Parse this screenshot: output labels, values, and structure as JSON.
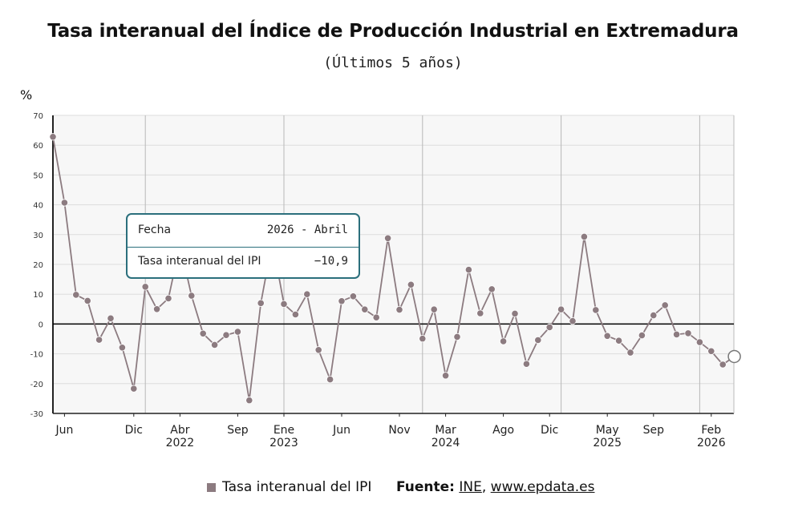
{
  "title": "Tasa interanual del Índice de Producción Industrial en Extremadura",
  "subtitle": "(Últimos 5 años)",
  "unit_label": "%",
  "legend": {
    "label": "Tasa interanual del IPI"
  },
  "source": {
    "prefix": "Fuente:",
    "ine": "INE",
    "sep": ",",
    "epdata": "www.epdata.es"
  },
  "tooltip": {
    "row1_label": "Fecha",
    "row1_value": "2026 - Abril",
    "row2_label": "Tasa interanual del IPI",
    "row2_value": "−10,9"
  },
  "colors": {
    "series": "#8c7b80",
    "tooltip_border": "#2b6f7c",
    "zero_line": "#000000",
    "plot_bg": "#f7f7f7"
  },
  "chart_data": {
    "type": "line",
    "title": "Tasa interanual del Índice de Producción Industrial en Extremadura",
    "subtitle": "(Últimos 5 años)",
    "ylabel": "%",
    "ylim": [
      -30,
      70
    ],
    "yticks": [
      -30,
      -20,
      -10,
      0,
      10,
      20,
      30,
      40,
      50,
      60,
      70
    ],
    "grid": true,
    "legend_position": "bottom",
    "x_start": "2021-05",
    "x_tick_labels": [
      {
        "month_index": 1,
        "label": "Jun",
        "year": ""
      },
      {
        "month_index": 7,
        "label": "Dic",
        "year": ""
      },
      {
        "month_index": 11,
        "label": "Abr",
        "year": "2022"
      },
      {
        "month_index": 16,
        "label": "Sep",
        "year": ""
      },
      {
        "month_index": 20,
        "label": "Ene",
        "year": "2023"
      },
      {
        "month_index": 25,
        "label": "Jun",
        "year": ""
      },
      {
        "month_index": 30,
        "label": "Nov",
        "year": ""
      },
      {
        "month_index": 34,
        "label": "Mar",
        "year": "2024"
      },
      {
        "month_index": 39,
        "label": "Ago",
        "year": ""
      },
      {
        "month_index": 43,
        "label": "Dic",
        "year": ""
      },
      {
        "month_index": 48,
        "label": "May",
        "year": "2025"
      },
      {
        "month_index": 52,
        "label": "Sep",
        "year": ""
      },
      {
        "month_index": 57,
        "label": "Feb",
        "year": "2026"
      }
    ],
    "year_boundaries": [
      8,
      20,
      32,
      44,
      56
    ],
    "series": [
      {
        "name": "Tasa interanual del IPI",
        "values": [
          62.8,
          40.7,
          9.8,
          7.8,
          -5.3,
          1.9,
          -7.9,
          -21.7,
          12.5,
          5.0,
          8.6,
          26.6,
          9.5,
          -3.2,
          -7.0,
          -3.7,
          -2.6,
          -25.6,
          7.0,
          27.8,
          6.7,
          3.2,
          10.0,
          -8.7,
          -18.6,
          7.7,
          9.3,
          4.9,
          2.2,
          28.8,
          4.8,
          13.2,
          -4.9,
          4.9,
          -17.3,
          -4.3,
          18.2,
          3.6,
          11.7,
          -5.8,
          3.5,
          -13.4,
          -5.4,
          -1.1,
          4.9,
          1.0,
          29.3,
          4.7,
          -4.0,
          -5.6,
          -9.6,
          -3.8,
          2.9,
          6.3,
          -3.5,
          -3.1,
          -6.1,
          -9.1,
          -13.6,
          -10.9
        ]
      }
    ]
  }
}
